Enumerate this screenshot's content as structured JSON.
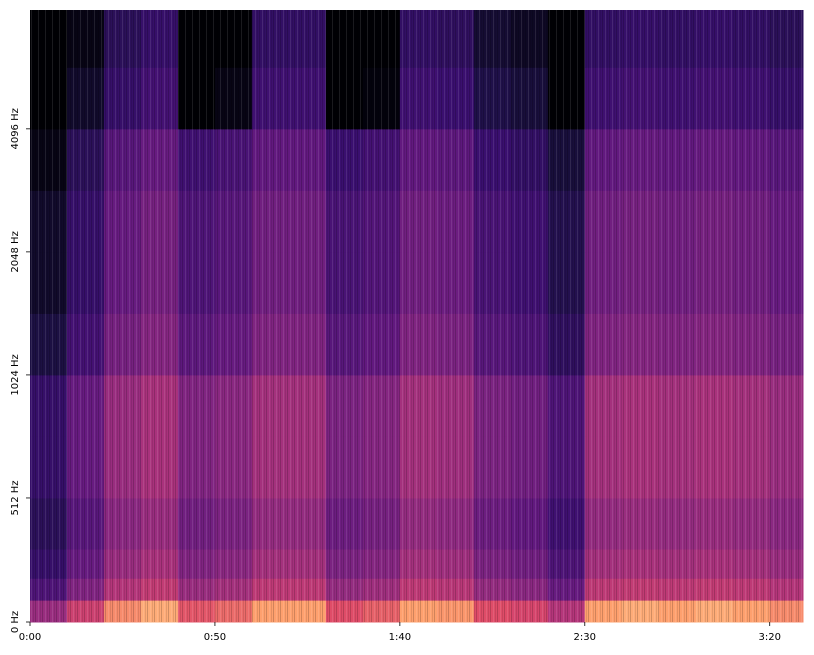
{
  "chart_data": {
    "type": "spectrogram",
    "colormap": "magma",
    "vlim": [
      -70,
      -5
    ],
    "yscale": "symlog",
    "xlim": [
      0,
      209
    ],
    "ylim": [
      0,
      8000
    ],
    "xticks": [
      {
        "value": 0,
        "label": "0:00"
      },
      {
        "value": 50,
        "label": "0:50"
      },
      {
        "value": 100,
        "label": "1:40"
      },
      {
        "value": 150,
        "label": "2:30"
      },
      {
        "value": 200,
        "label": "3:20"
      }
    ],
    "yticks": [
      {
        "value": 0,
        "label": "0 Hz"
      },
      {
        "value": 512,
        "label": "512 Hz"
      },
      {
        "value": 1024,
        "label": "1024 Hz"
      },
      {
        "value": 2048,
        "label": "2048 Hz"
      },
      {
        "value": 4096,
        "label": "4096 Hz"
      }
    ],
    "time_bins": [
      0,
      10,
      20,
      30,
      40,
      50,
      60,
      70,
      80,
      90,
      100,
      110,
      120,
      130,
      140,
      150,
      160,
      170,
      180,
      190,
      200,
      209
    ],
    "freq_bins": [
      0,
      128,
      256,
      384,
      512,
      724,
      1024,
      1448,
      2048,
      2896,
      4096,
      5793,
      8000
    ],
    "values": [
      [
        -35,
        -25,
        -15,
        -12,
        -20,
        -18,
        -13,
        -13,
        -21,
        -19,
        -13,
        -14,
        -21,
        -23,
        -30,
        -13,
        -12,
        -13,
        -12,
        -13,
        -15
      ],
      [
        -50,
        -40,
        -30,
        -27,
        -35,
        -33,
        -28,
        -28,
        -36,
        -34,
        -28,
        -29,
        -36,
        -38,
        -45,
        -28,
        -27,
        -28,
        -27,
        -28,
        -30
      ],
      [
        -55,
        -45,
        -35,
        -32,
        -40,
        -38,
        -33,
        -33,
        -41,
        -39,
        -33,
        -34,
        -41,
        -43,
        -50,
        -33,
        -32,
        -33,
        -32,
        -33,
        -35
      ],
      [
        -58,
        -48,
        -38,
        -35,
        -43,
        -41,
        -36,
        -36,
        -44,
        -42,
        -36,
        -37,
        -44,
        -46,
        -53,
        -36,
        -35,
        -36,
        -35,
        -36,
        -38
      ],
      [
        -55,
        -45,
        -35,
        -32,
        -40,
        -38,
        -33,
        -33,
        -41,
        -39,
        -33,
        -34,
        -41,
        -43,
        -50,
        -33,
        -32,
        -33,
        -32,
        -33,
        -35
      ],
      [
        -55,
        -45,
        -35,
        -32,
        -40,
        -38,
        -33,
        -33,
        -41,
        -39,
        -33,
        -34,
        -41,
        -43,
        -50,
        -33,
        -32,
        -33,
        -32,
        -33,
        -35
      ],
      [
        -62,
        -52,
        -42,
        -39,
        -47,
        -45,
        -40,
        -40,
        -48,
        -46,
        -40,
        -41,
        -48,
        -50,
        -57,
        -40,
        -39,
        -40,
        -39,
        -40,
        -42
      ],
      [
        -65,
        -55,
        -45,
        -42,
        -50,
        -48,
        -43,
        -43,
        -51,
        -49,
        -43,
        -44,
        -51,
        -53,
        -60,
        -43,
        -42,
        -43,
        -42,
        -43,
        -45
      ],
      [
        -65,
        -55,
        -45,
        -42,
        -50,
        -48,
        -43,
        -43,
        -51,
        -49,
        -43,
        -44,
        -51,
        -53,
        -60,
        -43,
        -42,
        -43,
        -42,
        -43,
        -45
      ],
      [
        -68,
        -58,
        -48,
        -45,
        -53,
        -51,
        -46,
        -46,
        -54,
        -52,
        -46,
        -47,
        -54,
        -56,
        -63,
        -46,
        -45,
        -46,
        -45,
        -46,
        -48
      ],
      [
        -75,
        -65,
        -55,
        -52,
        -70,
        -68,
        -53,
        -53,
        -71,
        -69,
        -53,
        -54,
        -61,
        -63,
        -70,
        -53,
        -52,
        -53,
        -52,
        -53,
        -55
      ],
      [
        -78,
        -68,
        -58,
        -55,
        -73,
        -71,
        -56,
        -56,
        -74,
        -72,
        -56,
        -57,
        -64,
        -66,
        -73,
        -56,
        -55,
        -56,
        -55,
        -56,
        -58
      ]
    ]
  }
}
